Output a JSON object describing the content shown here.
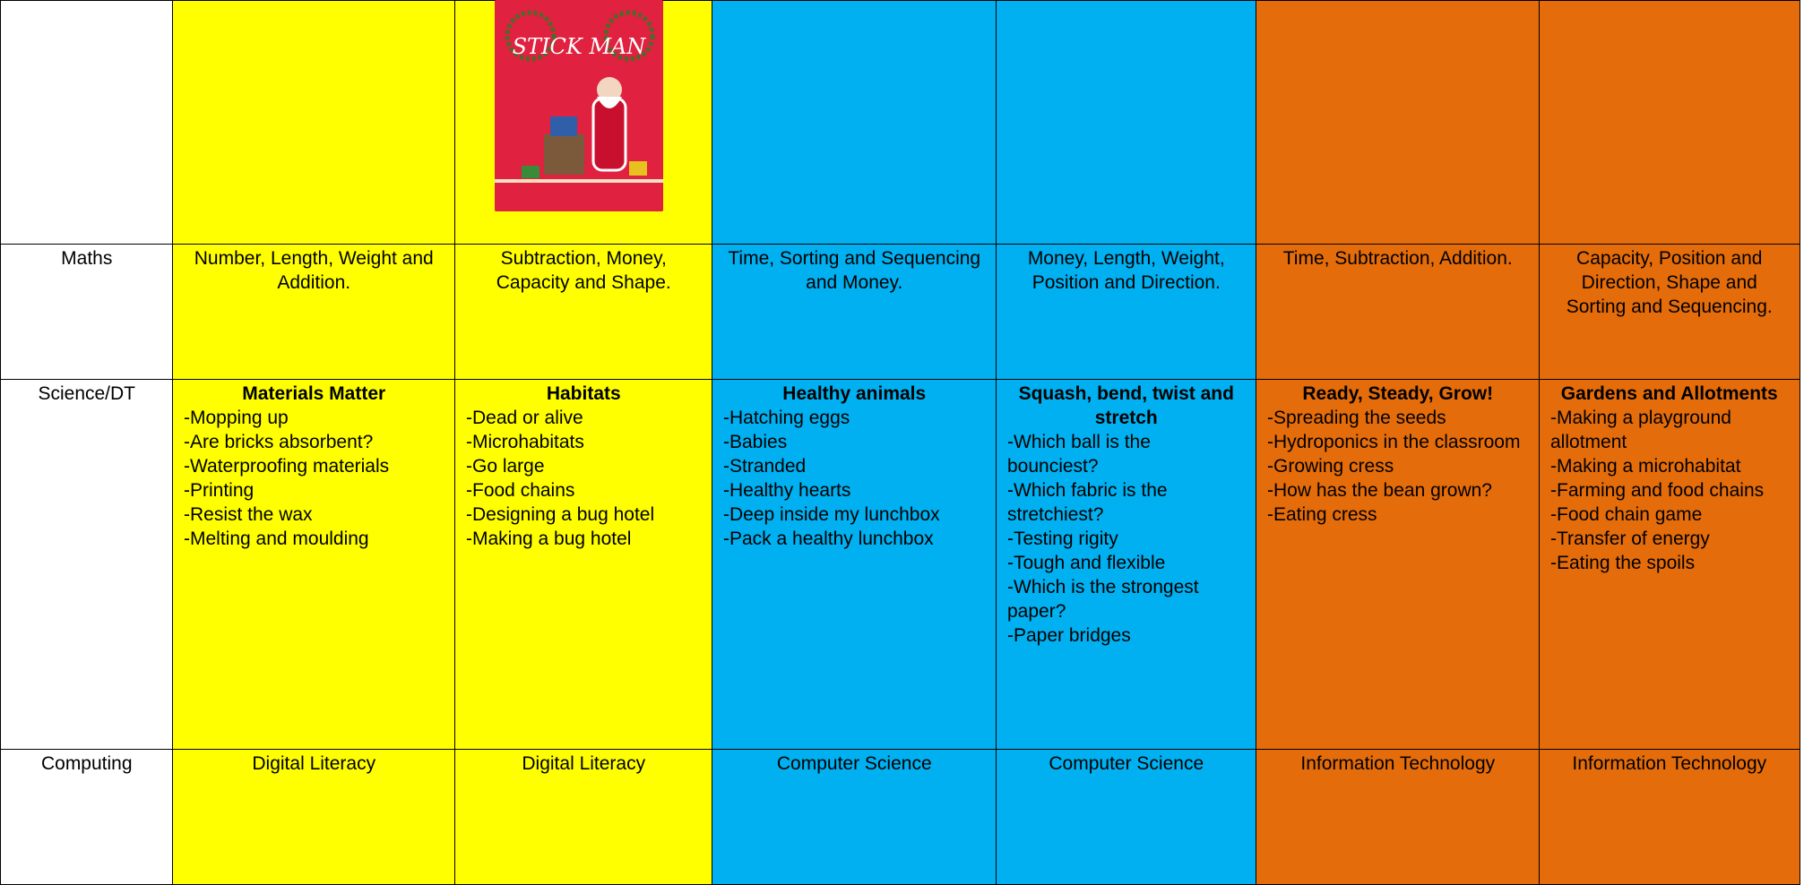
{
  "cover_title": "STICK MAN",
  "table": {
    "rows": [
      {
        "label": "Maths",
        "cells": [
          "Number, Length, Weight and Addition.",
          "Subtraction, Money, Capacity and Shape.",
          "Time, Sorting and Sequencing and Money.",
          "Money, Length, Weight, Position and Direction.",
          "Time, Subtraction, Addition.",
          "Capacity, Position and Direction, Shape and Sorting and Sequencing."
        ]
      },
      {
        "label": "Science/DT",
        "cells": [
          {
            "heading": "Materials Matter",
            "items": [
              "-Mopping up",
              "-Are bricks absorbent?",
              "-Waterproofing materials",
              "-Printing",
              "-Resist the wax",
              "-Melting and moulding"
            ]
          },
          {
            "heading": "Habitats",
            "items": [
              "-Dead or alive",
              "-Microhabitats",
              "-Go large",
              "-Food chains",
              "-Designing a bug hotel",
              "-Making a bug hotel"
            ]
          },
          {
            "heading": "Healthy animals",
            "items": [
              "-Hatching eggs",
              "-Babies",
              "-Stranded",
              "-Healthy hearts",
              "-Deep inside my lunchbox",
              "-Pack a healthy lunchbox"
            ]
          },
          {
            "heading": "Squash, bend, twist and stretch",
            "items": [
              "-Which ball is the bounciest?",
              "-Which fabric is the stretchiest?",
              "-Testing rigity",
              "-Tough and flexible",
              "-Which is the strongest paper?",
              "-Paper bridges"
            ]
          },
          {
            "heading": "Ready, Steady, Grow!",
            "items": [
              "-Spreading the seeds",
              "-Hydroponics in the classroom",
              "-Growing cress",
              "-How has the bean grown?",
              "-Eating cress"
            ]
          },
          {
            "heading": "Gardens and Allotments",
            "items": [
              "-Making a playground allotment",
              "-Making a microhabitat",
              "-Farming and food chains",
              "-Food chain game",
              "-Transfer of energy",
              "-Eating the spoils"
            ]
          }
        ]
      },
      {
        "label": "Computing",
        "cells": [
          "Digital Literacy",
          "Digital Literacy",
          "Computer Science",
          "Computer Science",
          "Information Technology",
          "Information Technology"
        ]
      }
    ]
  }
}
